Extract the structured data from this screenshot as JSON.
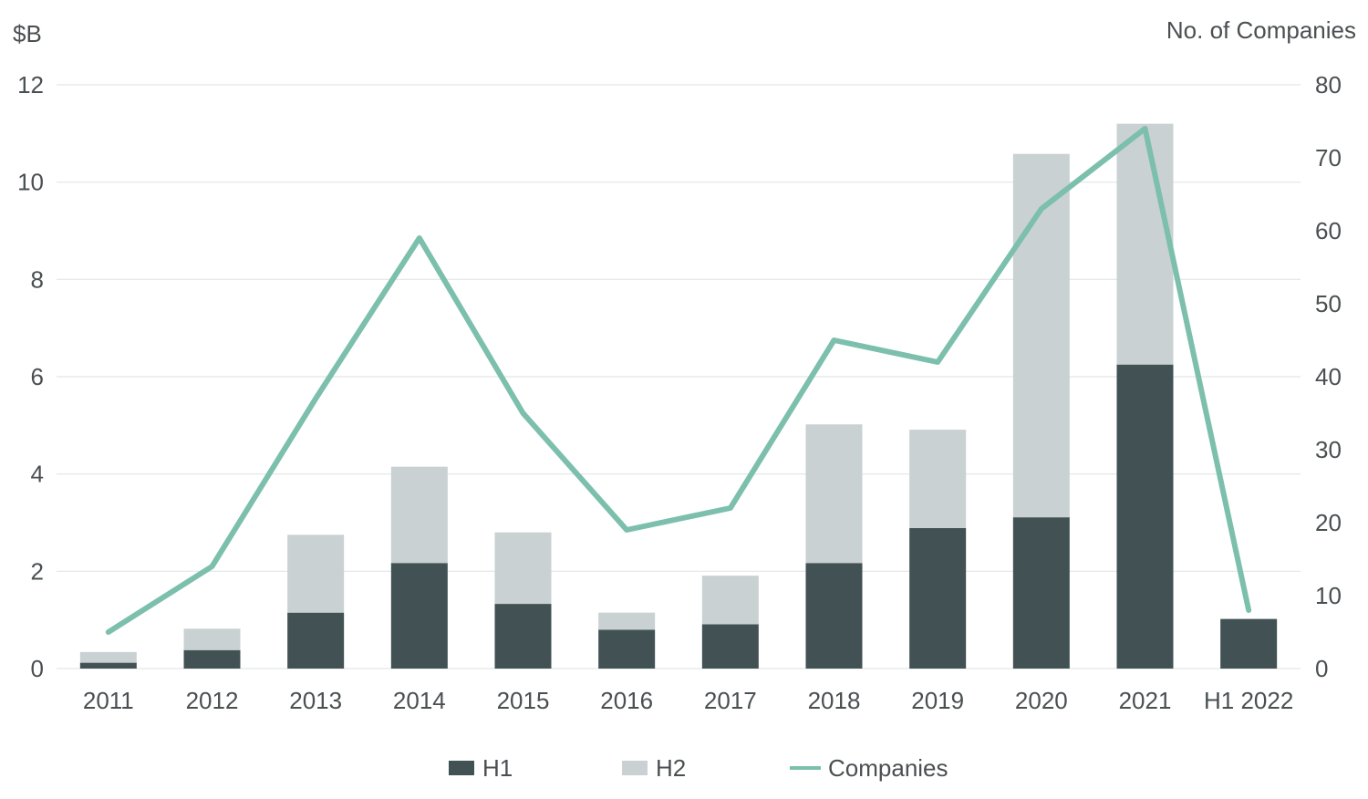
{
  "chart_data": {
    "type": "bar",
    "stacked": true,
    "categories": [
      "2011",
      "2012",
      "2013",
      "2014",
      "2015",
      "2016",
      "2017",
      "2018",
      "2019",
      "2020",
      "2021",
      "H1 2022"
    ],
    "series": [
      {
        "name": "H1",
        "type": "bar",
        "axis": "left",
        "color": "#425254",
        "values": [
          0.12,
          0.38,
          1.15,
          2.17,
          1.33,
          0.8,
          0.91,
          2.17,
          2.89,
          3.11,
          6.25,
          1.02
        ]
      },
      {
        "name": "H2",
        "type": "bar",
        "axis": "left",
        "color": "#c9d1d2",
        "values": [
          0.22,
          0.44,
          1.6,
          1.98,
          1.47,
          0.35,
          1.0,
          2.85,
          2.02,
          7.47,
          4.95,
          0
        ]
      },
      {
        "name": "Companies",
        "type": "line",
        "axis": "right",
        "color": "#7cbfad",
        "values": [
          5,
          14,
          37,
          59,
          35,
          19,
          22,
          45,
          42,
          63,
          74,
          8
        ]
      }
    ],
    "y_left": {
      "label": "$B",
      "min": 0,
      "max": 12,
      "ticks": [
        0,
        2,
        4,
        6,
        8,
        10,
        12
      ]
    },
    "y_right": {
      "label": "No. of Companies",
      "min": 0,
      "max": 80,
      "ticks": [
        0,
        10,
        20,
        30,
        40,
        50,
        60,
        70,
        80
      ]
    },
    "grid": true,
    "legend": {
      "position": "bottom-center",
      "items": [
        "H1",
        "H2",
        "Companies"
      ]
    }
  }
}
